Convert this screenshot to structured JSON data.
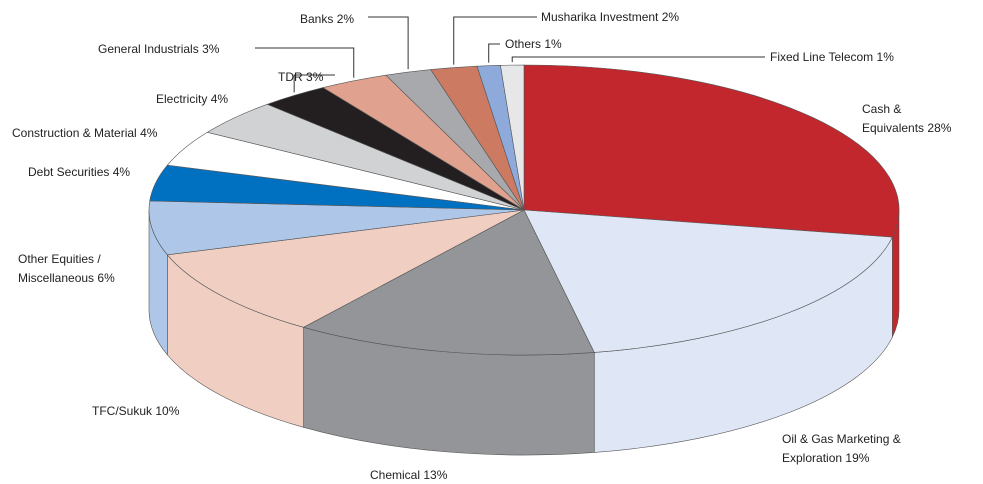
{
  "chart_data": {
    "type": "pie3d",
    "categories": [
      "Cash & Equivalents",
      "Oil & Gas Marketing & Exploration",
      "Chemical",
      "TFC/Sukuk",
      "Other Equities / Miscellaneous",
      "Debt Securities",
      "Construction & Material",
      "Electricity",
      "TDR",
      "General Industrials",
      "Banks",
      "Musharika Investment",
      "Others",
      "Fixed Line Telecom"
    ],
    "values": [
      28,
      19,
      13,
      10,
      6,
      4,
      4,
      4,
      3,
      3,
      2,
      2,
      1,
      1
    ],
    "value_labels": [
      "28%",
      "19%",
      "13%",
      "10%",
      "6%",
      "4%",
      "4%",
      "4%",
      "3%",
      "3%",
      "2%",
      "2%",
      "1%",
      "1%"
    ],
    "colors": [
      "#c1272d",
      "#dfe6f5",
      "#939598",
      "#f0cfc2",
      "#aec6e8",
      "#0070c0",
      "#ffffff",
      "#d1d2d4",
      "#231f20",
      "#e0a28f",
      "#a7a9ac",
      "#cd7a63",
      "#8eaadb",
      "#e6e7e8"
    ]
  }
}
